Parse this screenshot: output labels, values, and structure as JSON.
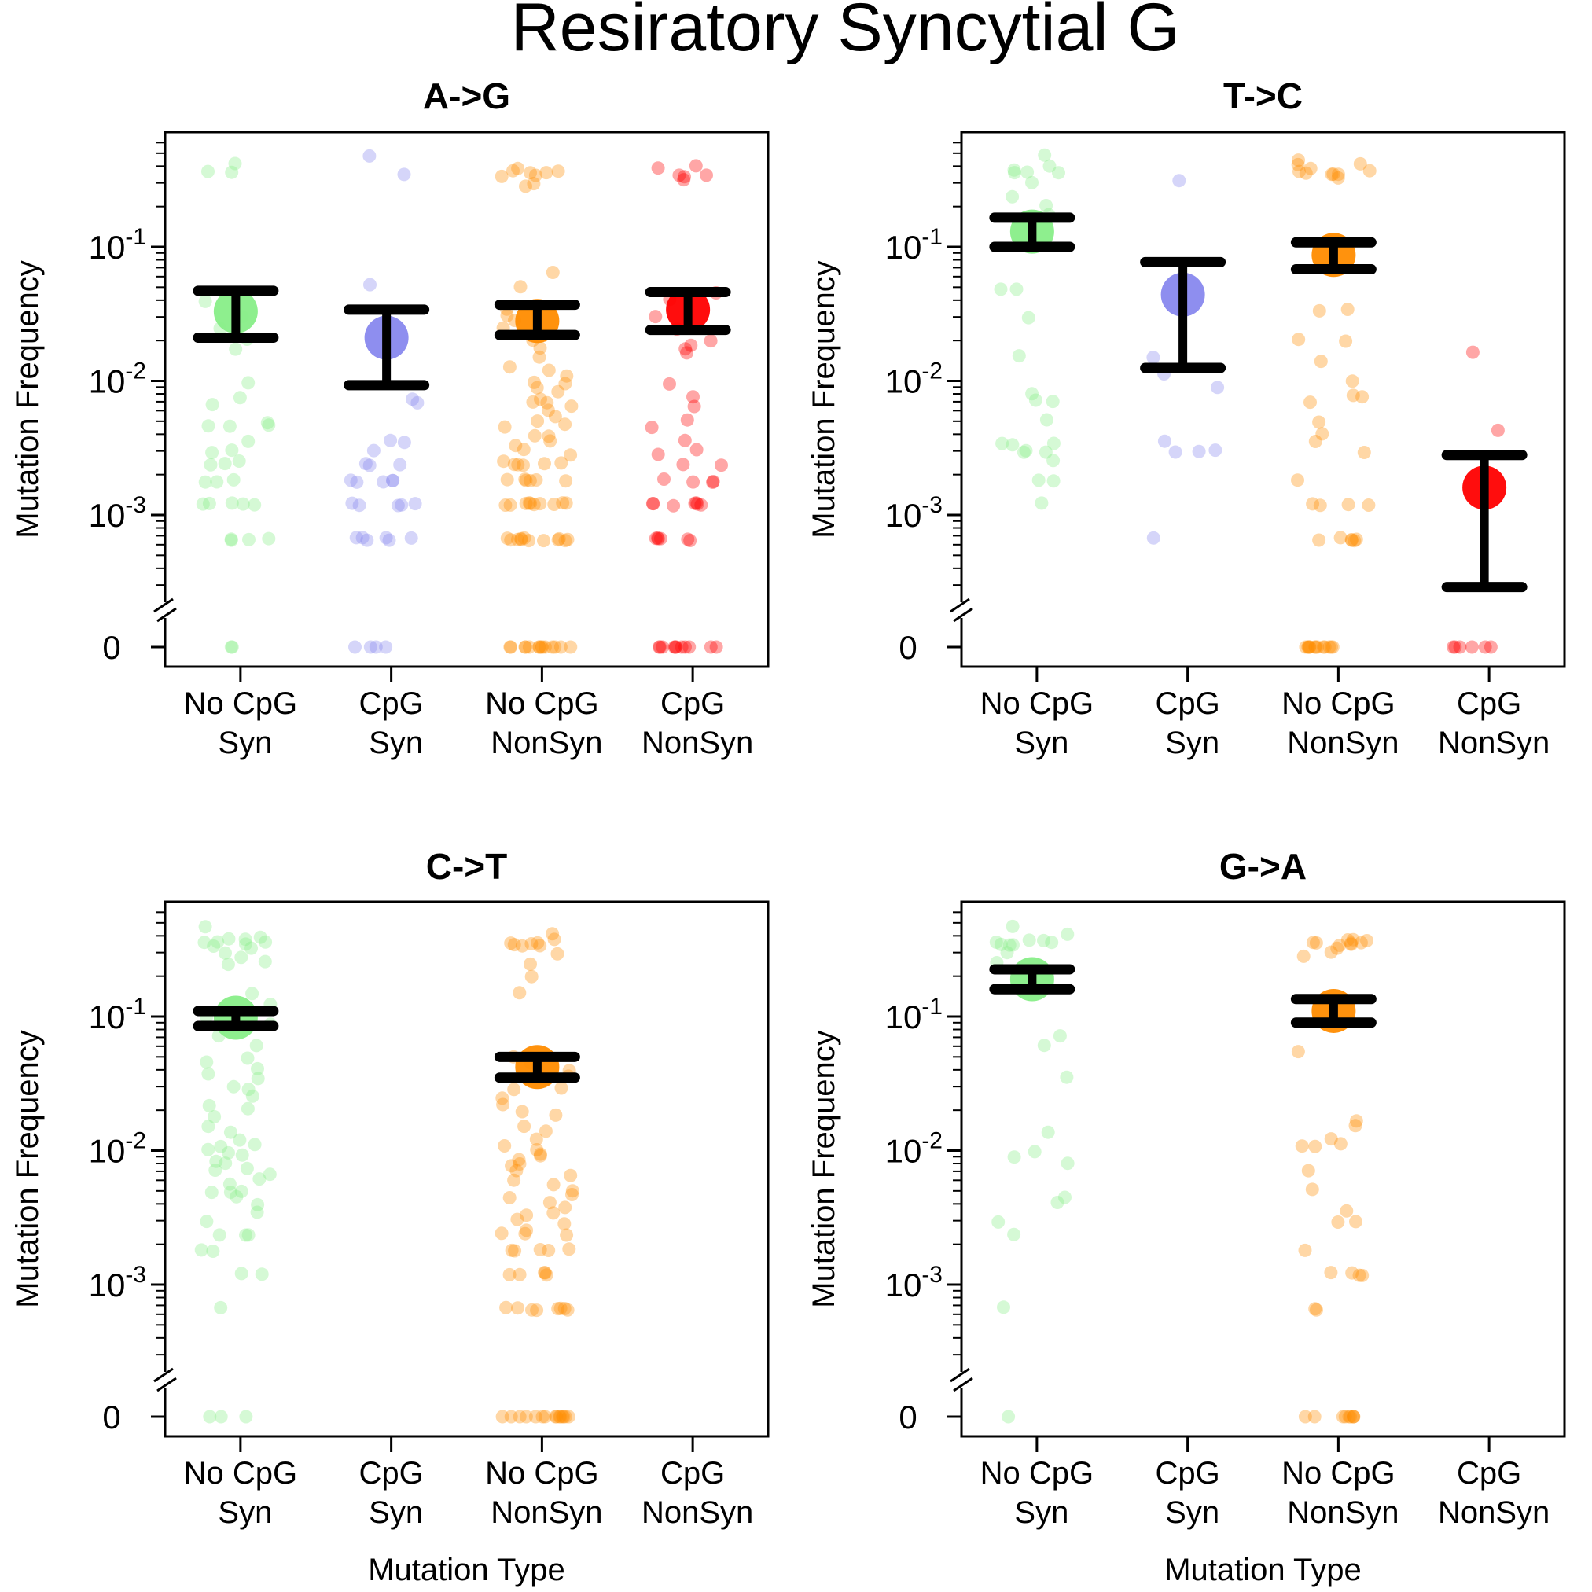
{
  "title": "Resiratory Syncytial G",
  "colors": {
    "No CpG Syn": "#88ee88",
    "CpG Syn": "#8888ee",
    "No CpG NonSyn": "#ff8c00",
    "CpG NonSyn": "#ff0000",
    "errorbar": "#000000"
  },
  "chart_data": [
    {
      "type": "scatter",
      "title": "A->G",
      "xlabel": "",
      "ylabel": "Mutation Frequency",
      "yscale": "log with zero break",
      "ylim": [
        0.00015,
        0.7
      ],
      "ytick_labels": [
        "10-1",
        "10-2",
        "10-3",
        "0"
      ],
      "categories": [
        [
          "No CpG",
          "Syn"
        ],
        [
          "CpG",
          "Syn"
        ],
        [
          "No CpG",
          "NonSyn"
        ],
        [
          "CpG",
          "NonSyn"
        ]
      ],
      "groups": [
        {
          "category": "No CpG Syn",
          "mean": 0.033,
          "lower": 0.021,
          "upper": 0.047,
          "points": [
            0.42,
            0.36,
            0.36,
            0.04,
            0.03,
            0.025,
            0.02,
            0.017,
            0.0095,
            0.0075,
            0.0065,
            0.005,
            0.0046,
            0.0046,
            0.0046,
            0.0035,
            0.003,
            0.003,
            0.0025,
            0.0024,
            0.0024,
            0.0018,
            0.0018,
            0.0018,
            0.0012,
            0.0012,
            0.0012,
            0.0012,
            0.0012,
            0.00066,
            0.00066,
            0.00066,
            0.00066,
            0,
            0
          ]
        },
        {
          "category": "CpG Syn",
          "mean": 0.021,
          "lower": 0.0093,
          "upper": 0.034,
          "points": [
            0.47,
            0.34,
            0.053,
            0.0075,
            0.007,
            0.0035,
            0.0035,
            0.003,
            0.0024,
            0.0024,
            0.0024,
            0.0018,
            0.0018,
            0.0018,
            0.0018,
            0.0018,
            0.0012,
            0.0012,
            0.0012,
            0.0012,
            0.0012,
            0.00066,
            0.00066,
            0.00066,
            0.00066,
            0.00066,
            0.00066,
            0,
            0,
            0,
            0
          ]
        },
        {
          "category": "No CpG NonSyn",
          "mean": 0.028,
          "lower": 0.022,
          "upper": 0.037,
          "points": [
            0.38,
            0.36,
            0.36,
            0.35,
            0.35,
            0.34,
            0.34,
            0.3,
            0.29,
            0.065,
            0.05,
            0.035,
            0.03,
            0.028,
            0.025,
            0.02,
            0.018,
            0.015,
            0.013,
            0.012,
            0.011,
            0.01,
            0.0095,
            0.009,
            0.0085,
            0.0075,
            0.007,
            0.0068,
            0.0065,
            0.006,
            0.0055,
            0.005,
            0.0048,
            0.0045,
            0.004,
            0.0038,
            0.0035,
            0.0033,
            0.003,
            0.0028,
            0.0025,
            0.0024,
            0.0024,
            0.0024,
            0.0024,
            0.0024,
            0.0018,
            0.0018,
            0.0018,
            0.0018,
            0.0018,
            0.0018,
            0.0012,
            0.0012,
            0.0012,
            0.0012,
            0.0012,
            0.0012,
            0.0012,
            0.0012,
            0.0012,
            0.0012,
            0.00066,
            0.00066,
            0.00066,
            0.00066,
            0.00066,
            0.00066,
            0.00066,
            0.00066,
            0.00066,
            0.00066,
            0.00066,
            0.00066,
            0,
            0,
            0,
            0,
            0,
            0,
            0,
            0,
            0,
            0,
            0,
            0,
            0,
            0
          ]
        },
        {
          "category": "CpG NonSyn",
          "mean": 0.034,
          "lower": 0.024,
          "upper": 0.046,
          "points": [
            0.4,
            0.38,
            0.35,
            0.35,
            0.34,
            0.31,
            0.045,
            0.04,
            0.03,
            0.025,
            0.02,
            0.018,
            0.017,
            0.016,
            0.0095,
            0.0075,
            0.0065,
            0.005,
            0.0045,
            0.0035,
            0.003,
            0.0028,
            0.0024,
            0.0024,
            0.0018,
            0.0018,
            0.0018,
            0.0018,
            0.0012,
            0.0012,
            0.0012,
            0.0012,
            0.0012,
            0.0012,
            0.0012,
            0.00066,
            0.00066,
            0.00066,
            0.00066,
            0.00066,
            0.00066,
            0,
            0,
            0,
            0,
            0,
            0,
            0,
            0,
            0,
            0,
            0
          ]
        }
      ]
    },
    {
      "type": "scatter",
      "title": "T->C",
      "xlabel": "",
      "ylabel": "Mutation Frequency",
      "yscale": "log with zero break",
      "ylim": [
        0.00015,
        0.7
      ],
      "ytick_labels": [
        "10-1",
        "10-2",
        "10-3",
        "0"
      ],
      "categories": [
        [
          "No CpG",
          "Syn"
        ],
        [
          "CpG",
          "Syn"
        ],
        [
          "No CpG",
          "NonSyn"
        ],
        [
          "CpG",
          "NonSyn"
        ]
      ],
      "groups": [
        {
          "category": "No CpG Syn",
          "mean": 0.13,
          "lower": 0.1,
          "upper": 0.165,
          "points": [
            0.48,
            0.4,
            0.38,
            0.36,
            0.36,
            0.35,
            0.3,
            0.24,
            0.2,
            0.17,
            0.15,
            0.048,
            0.047,
            0.03,
            0.015,
            0.008,
            0.007,
            0.007,
            0.0052,
            0.0035,
            0.0035,
            0.0033,
            0.003,
            0.003,
            0.003,
            0.0025,
            0.0018,
            0.0018,
            0.0012
          ]
        },
        {
          "category": "CpG Syn",
          "mean": 0.044,
          "lower": 0.0125,
          "upper": 0.077,
          "points": [
            0.31,
            0.015,
            0.011,
            0.009,
            0.0035,
            0.003,
            0.003,
            0.003,
            0.00066
          ]
        },
        {
          "category": "No CpG NonSyn",
          "mean": 0.087,
          "lower": 0.068,
          "upper": 0.108,
          "points": [
            0.45,
            0.42,
            0.4,
            0.38,
            0.36,
            0.36,
            0.35,
            0.35,
            0.34,
            0.34,
            0.33,
            0.035,
            0.034,
            0.02,
            0.02,
            0.014,
            0.01,
            0.008,
            0.0075,
            0.007,
            0.005,
            0.004,
            0.0035,
            0.003,
            0.0018,
            0.0012,
            0.0012,
            0.0012,
            0.0012,
            0.00066,
            0.00066,
            0.00066,
            0.00066,
            0.00066,
            0.00066,
            0,
            0,
            0,
            0,
            0,
            0,
            0,
            0,
            0,
            0,
            0,
            0,
            0
          ]
        },
        {
          "category": "CpG NonSyn",
          "mean": 0.0016,
          "lower": 0.00029,
          "upper": 0.0028,
          "points": [
            0.016,
            0.0042,
            0,
            0,
            0,
            0,
            0,
            0
          ]
        }
      ]
    },
    {
      "type": "scatter",
      "title": "C->T",
      "xlabel": "Mutation Type",
      "ylabel": "Mutation Frequency",
      "yscale": "log with zero break",
      "ylim": [
        0.00015,
        0.7
      ],
      "ytick_labels": [
        "10-1",
        "10-2",
        "10-3",
        "0"
      ],
      "categories": [
        [
          "No CpG",
          "Syn"
        ],
        [
          "CpG",
          "Syn"
        ],
        [
          "No CpG",
          "NonSyn"
        ],
        [
          "CpG",
          "NonSyn"
        ]
      ],
      "groups": [
        {
          "category": "No CpG Syn",
          "mean": 0.098,
          "lower": 0.085,
          "upper": 0.11,
          "points": [
            0.47,
            0.4,
            0.38,
            0.37,
            0.36,
            0.36,
            0.35,
            0.35,
            0.34,
            0.33,
            0.3,
            0.28,
            0.26,
            0.25,
            0.15,
            0.12,
            0.1,
            0.09,
            0.07,
            0.06,
            0.05,
            0.045,
            0.04,
            0.038,
            0.035,
            0.03,
            0.028,
            0.025,
            0.022,
            0.02,
            0.018,
            0.015,
            0.014,
            0.012,
            0.011,
            0.0105,
            0.01,
            0.0095,
            0.009,
            0.0085,
            0.008,
            0.0075,
            0.007,
            0.0065,
            0.006,
            0.0055,
            0.005,
            0.005,
            0.0048,
            0.0045,
            0.004,
            0.0035,
            0.003,
            0.0024,
            0.0024,
            0.0024,
            0.0018,
            0.0018,
            0.0012,
            0.0012,
            0.00066,
            0,
            0,
            0
          ]
        },
        {
          "category": "CpG Syn",
          "points": []
        },
        {
          "category": "No CpG NonSyn",
          "mean": 0.042,
          "lower": 0.035,
          "upper": 0.05,
          "points": [
            0.42,
            0.38,
            0.36,
            0.36,
            0.35,
            0.35,
            0.34,
            0.33,
            0.3,
            0.25,
            0.2,
            0.15,
            0.05,
            0.045,
            0.04,
            0.035,
            0.03,
            0.028,
            0.025,
            0.022,
            0.02,
            0.018,
            0.015,
            0.014,
            0.012,
            0.011,
            0.01,
            0.0095,
            0.009,
            0.0085,
            0.008,
            0.0075,
            0.007,
            0.0065,
            0.006,
            0.0055,
            0.005,
            0.0048,
            0.0045,
            0.004,
            0.0038,
            0.0035,
            0.0033,
            0.003,
            0.0028,
            0.0025,
            0.0024,
            0.0024,
            0.0024,
            0.0018,
            0.0018,
            0.0018,
            0.0018,
            0.0018,
            0.0012,
            0.0012,
            0.0012,
            0.0012,
            0.0012,
            0.00066,
            0.00066,
            0.00066,
            0.00066,
            0.00066,
            0.00066,
            0.00066,
            0.00066,
            0,
            0,
            0,
            0,
            0,
            0,
            0,
            0,
            0,
            0,
            0,
            0,
            0,
            0,
            0
          ]
        },
        {
          "category": "CpG NonSyn",
          "points": []
        }
      ]
    },
    {
      "type": "scatter",
      "title": "G->A",
      "xlabel": "Mutation Type",
      "ylabel": "Mutation Frequency",
      "yscale": "log with zero break",
      "ylim": [
        0.00015,
        0.7
      ],
      "ytick_labels": [
        "10-1",
        "10-2",
        "10-3",
        "0"
      ],
      "categories": [
        [
          "No CpG",
          "Syn"
        ],
        [
          "CpG",
          "Syn"
        ],
        [
          "No CpG",
          "NonSyn"
        ],
        [
          "CpG",
          "NonSyn"
        ]
      ],
      "groups": [
        {
          "category": "No CpG Syn",
          "mean": 0.19,
          "lower": 0.16,
          "upper": 0.225,
          "points": [
            0.47,
            0.4,
            0.38,
            0.36,
            0.36,
            0.36,
            0.35,
            0.35,
            0.34,
            0.3,
            0.25,
            0.2,
            0.07,
            0.06,
            0.035,
            0.014,
            0.01,
            0.009,
            0.008,
            0.0045,
            0.004,
            0.003,
            0.0024,
            0.00066,
            0
          ]
        },
        {
          "category": "CpG Syn",
          "points": []
        },
        {
          "category": "No CpG NonSyn",
          "mean": 0.11,
          "lower": 0.09,
          "upper": 0.135,
          "points": [
            0.38,
            0.37,
            0.36,
            0.36,
            0.36,
            0.36,
            0.35,
            0.35,
            0.34,
            0.33,
            0.3,
            0.28,
            0.055,
            0.017,
            0.015,
            0.012,
            0.011,
            0.011,
            0.011,
            0.007,
            0.005,
            0.0035,
            0.003,
            0.003,
            0.0018,
            0.0012,
            0.0012,
            0.0012,
            0.0012,
            0.00066,
            0.00066,
            0,
            0,
            0,
            0,
            0,
            0,
            0,
            0,
            0
          ]
        },
        {
          "category": "CpG NonSyn",
          "points": []
        }
      ]
    }
  ]
}
